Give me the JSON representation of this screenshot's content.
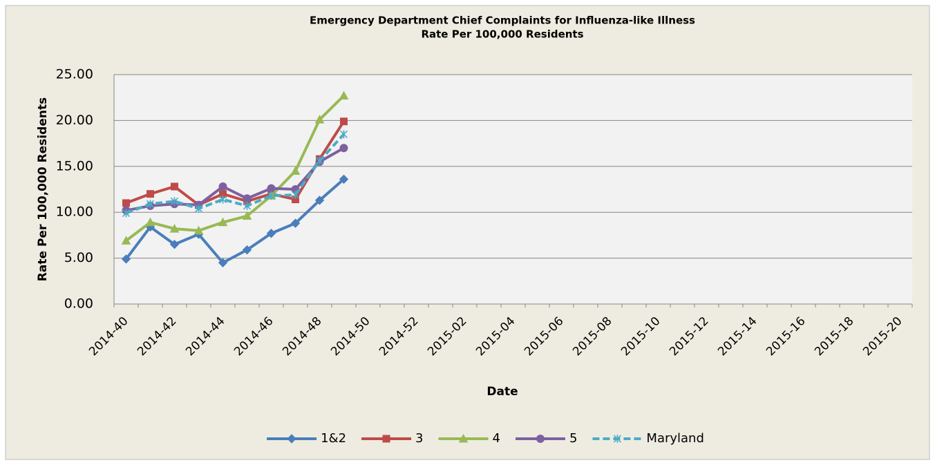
{
  "chart_data": {
    "type": "line",
    "title": "Emergency Department Chief Complaints for Influenza-like Illness",
    "subtitle": "Rate Per 100,000 Residents",
    "x_label": "Date",
    "y_label": "Rate Per 100,000 Residents",
    "categories": [
      "2014-40",
      null,
      "2014-42",
      null,
      "2014-44",
      null,
      "2014-46",
      null,
      "2014-48",
      null,
      "2014-50",
      null,
      "2014-52",
      null,
      "2015-02",
      null,
      "2015-04",
      null,
      "2015-06",
      null,
      "2015-08",
      null,
      "2015-10",
      null,
      "2015-12",
      null,
      "2015-14",
      null,
      "2015-16",
      null,
      "2015-18",
      null,
      "2015-20"
    ],
    "series": [
      {
        "name": "1&2",
        "color": "#4a7ebb",
        "marker": "diamond",
        "dash": false,
        "values": [
          4.9,
          8.4,
          6.5,
          7.6,
          4.5,
          5.9,
          7.7,
          8.8,
          11.3,
          13.6,
          null,
          null,
          null,
          null,
          null,
          null,
          null,
          null,
          null,
          null,
          null,
          null,
          null,
          null,
          null,
          null,
          null,
          null,
          null,
          null,
          null,
          null,
          null
        ]
      },
      {
        "name": "3",
        "color": "#be4b48",
        "marker": "square",
        "dash": false,
        "values": [
          11.0,
          12.0,
          12.8,
          10.8,
          12.0,
          11.2,
          12.0,
          11.4,
          15.8,
          19.9,
          null,
          null,
          null,
          null,
          null,
          null,
          null,
          null,
          null,
          null,
          null,
          null,
          null,
          null,
          null,
          null,
          null,
          null,
          null,
          null,
          null,
          null,
          null
        ]
      },
      {
        "name": "4",
        "color": "#98b954",
        "marker": "triangle",
        "dash": false,
        "values": [
          6.9,
          8.9,
          8.2,
          8.0,
          8.9,
          9.6,
          11.8,
          14.5,
          20.1,
          22.7,
          null,
          null,
          null,
          null,
          null,
          null,
          null,
          null,
          null,
          null,
          null,
          null,
          null,
          null,
          null,
          null,
          null,
          null,
          null,
          null,
          null,
          null,
          null
        ]
      },
      {
        "name": "5",
        "color": "#7d60a0",
        "marker": "circle",
        "dash": false,
        "values": [
          10.2,
          10.7,
          10.9,
          10.8,
          12.8,
          11.5,
          12.6,
          12.5,
          15.5,
          17.0,
          null,
          null,
          null,
          null,
          null,
          null,
          null,
          null,
          null,
          null,
          null,
          null,
          null,
          null,
          null,
          null,
          null,
          null,
          null,
          null,
          null,
          null,
          null
        ]
      },
      {
        "name": "Maryland",
        "color": "#4bacc6",
        "marker": "asterisk",
        "dash": true,
        "values": [
          9.9,
          10.9,
          11.2,
          10.4,
          11.4,
          10.7,
          11.8,
          11.9,
          15.6,
          18.5,
          null,
          null,
          null,
          null,
          null,
          null,
          null,
          null,
          null,
          null,
          null,
          null,
          null,
          null,
          null,
          null,
          null,
          null,
          null,
          null,
          null,
          null,
          null
        ]
      }
    ],
    "ylim": [
      0,
      25
    ],
    "yticks": [
      {
        "value": 0,
        "label": "0.00"
      },
      {
        "value": 5,
        "label": "5.00"
      },
      {
        "value": 10,
        "label": "10.00"
      },
      {
        "value": 15,
        "label": "15.00"
      },
      {
        "value": 20,
        "label": "20.00"
      },
      {
        "value": 25,
        "label": "25.00"
      }
    ],
    "grid": true,
    "legend": "bottom"
  }
}
